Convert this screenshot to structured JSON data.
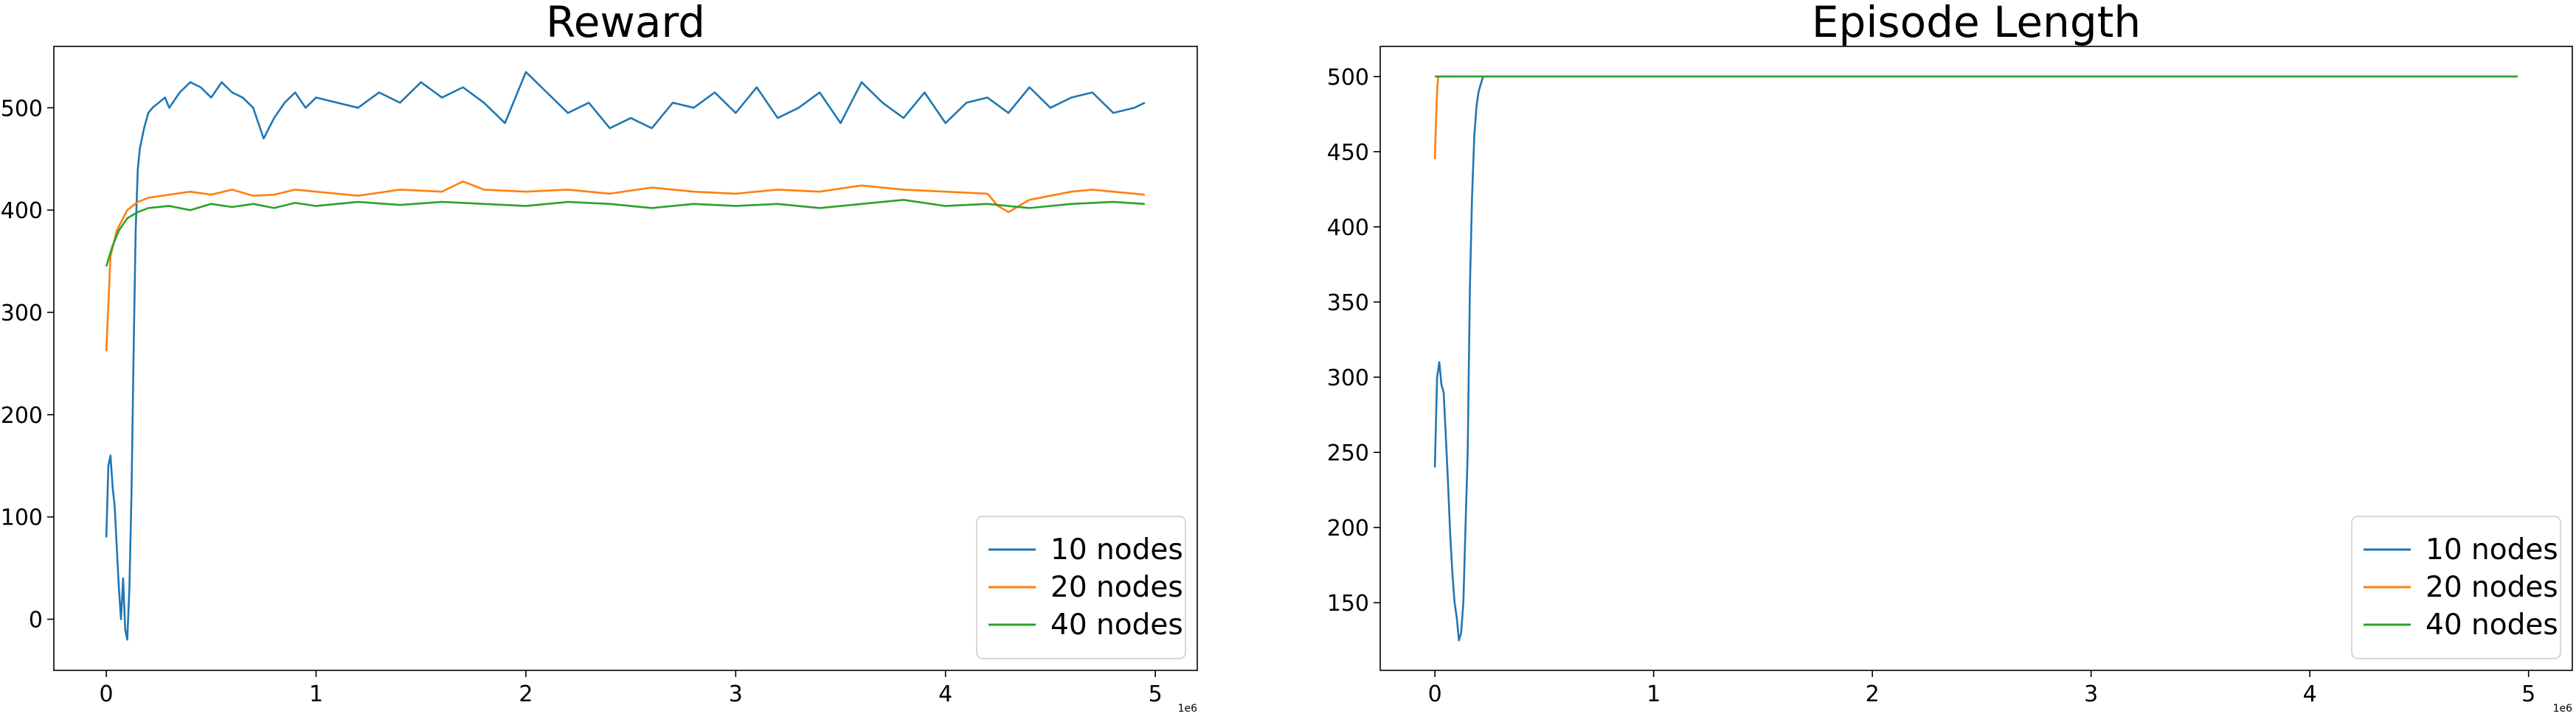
{
  "chart_data": [
    {
      "type": "line",
      "title": "Reward",
      "xlabel": "",
      "ylabel": "",
      "x_offset_label": "1e6",
      "xlim": [
        -0.25,
        5.2
      ],
      "ylim": [
        -50,
        560
      ],
      "xticks": [
        0,
        1,
        2,
        3,
        4,
        5
      ],
      "xtick_labels": [
        "0",
        "1",
        "2",
        "3",
        "4",
        "5"
      ],
      "yticks": [
        0,
        100,
        200,
        300,
        400,
        500
      ],
      "ytick_labels": [
        "0",
        "100",
        "200",
        "300",
        "400",
        "500"
      ],
      "grid": false,
      "legend_position": "lower-right",
      "series": [
        {
          "name": "10 nodes",
          "color": "#1f77b4",
          "x": [
            0,
            0.01,
            0.02,
            0.03,
            0.04,
            0.05,
            0.06,
            0.07,
            0.08,
            0.09,
            0.1,
            0.11,
            0.12,
            0.13,
            0.14,
            0.15,
            0.16,
            0.17,
            0.18,
            0.2,
            0.22,
            0.25,
            0.28,
            0.3,
            0.35,
            0.4,
            0.45,
            0.5,
            0.55,
            0.6,
            0.65,
            0.7,
            0.75,
            0.8,
            0.85,
            0.9,
            0.95,
            1.0,
            1.1,
            1.2,
            1.3,
            1.4,
            1.5,
            1.6,
            1.7,
            1.8,
            1.9,
            2.0,
            2.1,
            2.2,
            2.3,
            2.4,
            2.5,
            2.6,
            2.7,
            2.8,
            2.9,
            3.0,
            3.1,
            3.2,
            3.3,
            3.4,
            3.5,
            3.6,
            3.7,
            3.8,
            3.9,
            4.0,
            4.1,
            4.2,
            4.3,
            4.4,
            4.5,
            4.6,
            4.7,
            4.8,
            4.9,
            4.95
          ],
          "y": [
            80,
            150,
            160,
            130,
            110,
            70,
            30,
            0,
            40,
            -10,
            -20,
            30,
            120,
            260,
            380,
            440,
            460,
            470,
            480,
            495,
            500,
            505,
            510,
            500,
            515,
            525,
            520,
            510,
            525,
            515,
            510,
            500,
            470,
            490,
            505,
            515,
            500,
            510,
            505,
            500,
            515,
            505,
            525,
            510,
            520,
            505,
            485,
            535,
            515,
            495,
            505,
            480,
            490,
            480,
            505,
            500,
            515,
            495,
            520,
            490,
            500,
            515,
            485,
            525,
            505,
            490,
            515,
            485,
            505,
            510,
            495,
            520,
            500,
            510,
            515,
            495,
            500,
            505
          ]
        },
        {
          "name": "20 nodes",
          "color": "#ff7f0e",
          "x": [
            0,
            0.02,
            0.05,
            0.1,
            0.15,
            0.2,
            0.3,
            0.4,
            0.5,
            0.6,
            0.7,
            0.8,
            0.9,
            1.0,
            1.2,
            1.4,
            1.6,
            1.7,
            1.8,
            2.0,
            2.2,
            2.4,
            2.6,
            2.8,
            3.0,
            3.2,
            3.4,
            3.6,
            3.8,
            4.0,
            4.2,
            4.25,
            4.3,
            4.4,
            4.5,
            4.6,
            4.7,
            4.8,
            4.9,
            4.95
          ],
          "y": [
            262,
            355,
            380,
            400,
            408,
            412,
            415,
            418,
            415,
            420,
            414,
            415,
            420,
            418,
            414,
            420,
            418,
            428,
            420,
            418,
            420,
            416,
            422,
            418,
            416,
            420,
            418,
            424,
            420,
            418,
            416,
            404,
            398,
            410,
            414,
            418,
            420,
            418,
            416,
            415
          ]
        },
        {
          "name": "40 nodes",
          "color": "#2ca02c",
          "x": [
            0,
            0.03,
            0.06,
            0.1,
            0.15,
            0.2,
            0.3,
            0.4,
            0.5,
            0.6,
            0.7,
            0.8,
            0.9,
            1.0,
            1.2,
            1.4,
            1.6,
            1.8,
            2.0,
            2.2,
            2.4,
            2.6,
            2.8,
            3.0,
            3.2,
            3.4,
            3.6,
            3.8,
            4.0,
            4.2,
            4.4,
            4.6,
            4.8,
            4.95
          ],
          "y": [
            345,
            365,
            380,
            392,
            398,
            402,
            404,
            400,
            406,
            403,
            406,
            402,
            407,
            404,
            408,
            405,
            408,
            406,
            404,
            408,
            406,
            402,
            406,
            404,
            406,
            402,
            406,
            410,
            404,
            406,
            402,
            406,
            408,
            406
          ]
        }
      ]
    },
    {
      "type": "line",
      "title": "Episode Length",
      "xlabel": "",
      "ylabel": "",
      "x_offset_label": "1e6",
      "xlim": [
        -0.25,
        5.2
      ],
      "ylim": [
        105,
        520
      ],
      "xticks": [
        0,
        1,
        2,
        3,
        4,
        5
      ],
      "xtick_labels": [
        "0",
        "1",
        "2",
        "3",
        "4",
        "5"
      ],
      "yticks": [
        150,
        200,
        250,
        300,
        350,
        400,
        450,
        500
      ],
      "ytick_labels": [
        "150",
        "200",
        "250",
        "300",
        "350",
        "400",
        "450",
        "500"
      ],
      "grid": false,
      "legend_position": "lower-right",
      "series": [
        {
          "name": "10 nodes",
          "color": "#1f77b4",
          "x": [
            0,
            0.01,
            0.02,
            0.03,
            0.04,
            0.05,
            0.06,
            0.07,
            0.08,
            0.09,
            0.1,
            0.11,
            0.12,
            0.13,
            0.14,
            0.15,
            0.16,
            0.17,
            0.18,
            0.19,
            0.2,
            0.21,
            0.22,
            0.23
          ],
          "y": [
            240,
            300,
            310,
            295,
            290,
            260,
            230,
            195,
            170,
            150,
            140,
            125,
            130,
            150,
            200,
            250,
            360,
            420,
            460,
            480,
            490,
            495,
            500,
            500
          ]
        },
        {
          "name": "20 nodes",
          "color": "#ff7f0e",
          "x": [
            0,
            0.005,
            0.01,
            0.015,
            0.02,
            0.1
          ],
          "y": [
            445,
            470,
            490,
            500,
            500,
            500
          ]
        },
        {
          "name": "40 nodes",
          "color": "#2ca02c",
          "x": [
            0,
            0.5,
            1,
            2,
            3,
            4,
            4.95
          ],
          "y": [
            500,
            500,
            500,
            500,
            500,
            500,
            500
          ]
        }
      ]
    }
  ]
}
